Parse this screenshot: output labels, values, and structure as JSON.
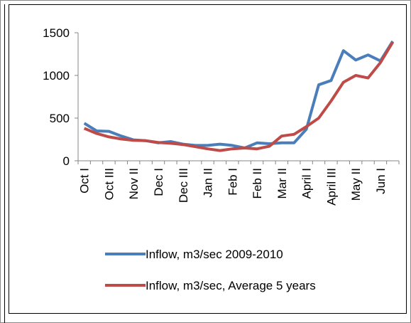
{
  "chart_data": {
    "type": "line",
    "categories": [
      "Oct I",
      null,
      "Oct III",
      null,
      "Nov II",
      null,
      "Dec I",
      null,
      "Dec III",
      null,
      "Jan II",
      null,
      "Feb I",
      null,
      "Feb II",
      null,
      "Mar II",
      null,
      "April I",
      null,
      "April III",
      null,
      "May II",
      null,
      "Jun I",
      null
    ],
    "series": [
      {
        "name": "Inflow, m3/sec 2009-2010",
        "color": "#4a7ebb",
        "values": [
          440,
          350,
          345,
          290,
          245,
          235,
          210,
          225,
          195,
          180,
          180,
          195,
          180,
          150,
          210,
          200,
          210,
          210,
          370,
          890,
          940,
          1290,
          1180,
          1240,
          1170,
          1400
        ]
      },
      {
        "name": "Inflow, m3/sec, Average 5 years",
        "color": "#be4b48",
        "values": [
          380,
          320,
          280,
          255,
          240,
          235,
          215,
          205,
          190,
          165,
          140,
          120,
          140,
          150,
          140,
          170,
          290,
          310,
          400,
          500,
          700,
          920,
          1000,
          970,
          1150,
          1390
        ]
      }
    ],
    "ylim": [
      0,
      1500
    ],
    "yticks": [
      0,
      500,
      1000,
      1500
    ],
    "grid": false
  }
}
